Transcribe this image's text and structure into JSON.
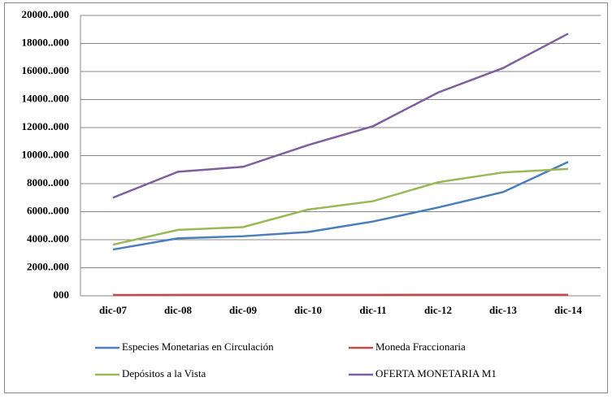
{
  "chart_data": {
    "type": "line",
    "categories": [
      "dic-07",
      "dic-08",
      "dic-09",
      "dic-10",
      "dic-11",
      "dic-12",
      "dic-13",
      "dic-14"
    ],
    "series": [
      {
        "name": "Especies Monetarias en Circulación",
        "color": "#4a7ebb",
        "values": [
          3300,
          4100,
          4250,
          4550,
          5300,
          6300,
          7400,
          9550
        ]
      },
      {
        "name": "Moneda Fraccionaria",
        "color": "#be4b48",
        "values": [
          60,
          62,
          64,
          66,
          68,
          70,
          72,
          75
        ]
      },
      {
        "name": "Depósitos a la Vista",
        "color": "#98b954",
        "values": [
          3650,
          4700,
          4900,
          6150,
          6750,
          8100,
          8800,
          9050
        ]
      },
      {
        "name": "OFERTA MONETARIA M1",
        "color": "#7d5fa0",
        "values": [
          7000,
          8850,
          9200,
          10750,
          12100,
          14500,
          16250,
          18700
        ]
      }
    ],
    "ylim": [
      0,
      20000
    ],
    "yticks": [
      {
        "value": 0,
        "label": "000"
      },
      {
        "value": 2000,
        "label": "2000..000"
      },
      {
        "value": 4000,
        "label": "4000..000"
      },
      {
        "value": 6000,
        "label": "6000..000"
      },
      {
        "value": 8000,
        "label": "8000..000"
      },
      {
        "value": 10000,
        "label": "10000..000"
      },
      {
        "value": 12000,
        "label": "12000..000"
      },
      {
        "value": 14000,
        "label": "14000..000"
      },
      {
        "value": 16000,
        "label": "16000..000"
      },
      {
        "value": 18000,
        "label": "18000..000"
      },
      {
        "value": 20000,
        "label": "20000..000"
      }
    ],
    "grid": true
  }
}
